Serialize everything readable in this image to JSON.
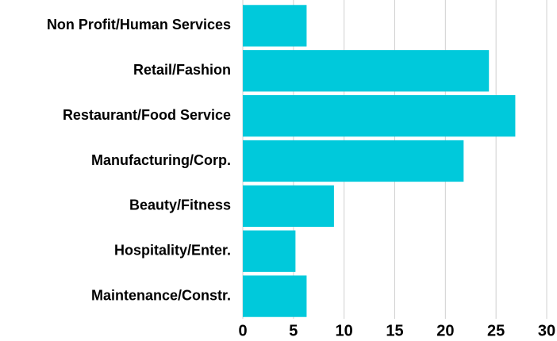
{
  "chart_data": {
    "type": "barh",
    "categories": [
      "Non Profit/Human Services",
      "Retail/Fashion",
      "Restaurant/Food Service",
      "Manufacturing/Corp.",
      "Beauty/Fitness",
      "Hospitality/Enter.",
      "Maintenance/Constr."
    ],
    "values": [
      6.3,
      24.3,
      26.9,
      21.8,
      9.0,
      5.2,
      6.3
    ],
    "color": "#00c9db",
    "xlim": [
      0,
      30
    ],
    "xticks": [
      0,
      5,
      10,
      15,
      20,
      25,
      30
    ],
    "grid": true
  }
}
